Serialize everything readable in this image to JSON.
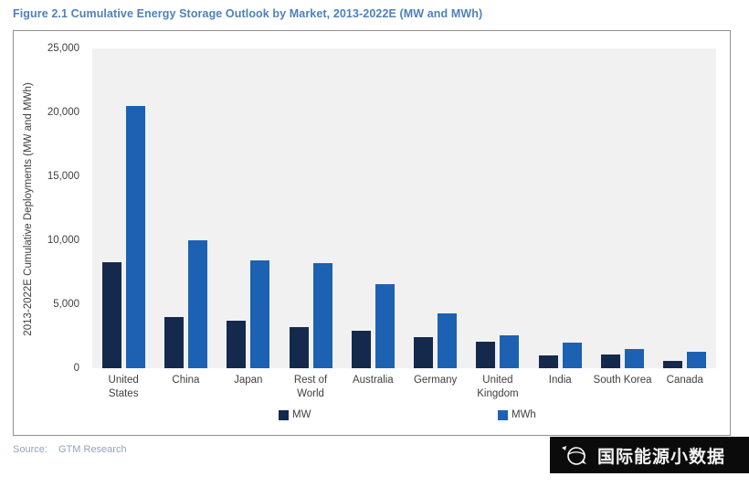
{
  "figure": {
    "title": "Figure 2.1  Cumulative Energy Storage Outlook by Market, 2013-2022E (MW and MWh)",
    "source_label": "Source:",
    "source_value": "GTM Research",
    "watermark_text": "国际能源小数据"
  },
  "colors": {
    "title_text": "#4f81bb",
    "mw_bar": "#15294d",
    "mwh_bar": "#1c61b2",
    "plot_background": "#f2f1f2",
    "frame_border": "#8f8f8f",
    "axis_text": "#3f3f3f",
    "source_text": "#93a4ba",
    "watermark_background": "#0b0b0b"
  },
  "chart_data": {
    "type": "bar",
    "title": "Figure 2.1  Cumulative Energy Storage Outlook by Market, 2013-2022E (MW and MWh)",
    "xlabel": "",
    "ylabel": "2013-2022E Cumulative Deployments (MW and MWh)",
    "ylim": [
      0,
      25000
    ],
    "ytick_step": 5000,
    "ytick_labels": [
      "0",
      "5,000",
      "10,000",
      "15,000",
      "20,000",
      "25,000"
    ],
    "grid": false,
    "legend_position": "bottom",
    "categories": [
      "United States",
      "China",
      "Japan",
      "Rest of World",
      "Australia",
      "Germany",
      "United Kingdom",
      "India",
      "South Korea",
      "Canada"
    ],
    "series": [
      {
        "name": "MW",
        "color": "#15294d",
        "values": [
          8300,
          4000,
          3700,
          3200,
          2900,
          2400,
          2100,
          1000,
          1100,
          600
        ]
      },
      {
        "name": "MWh",
        "color": "#1c61b2",
        "values": [
          20500,
          10000,
          8400,
          8200,
          6600,
          4300,
          2600,
          2000,
          1500,
          1300
        ]
      }
    ]
  }
}
